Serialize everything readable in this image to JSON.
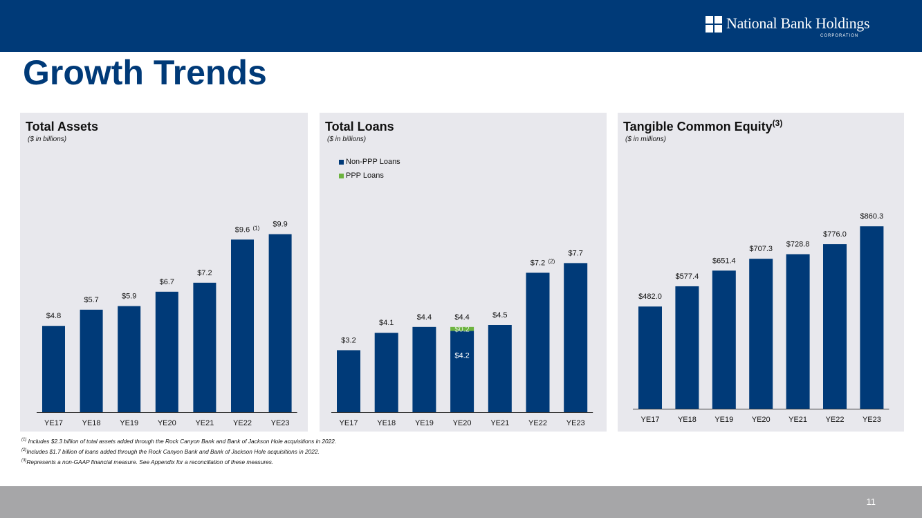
{
  "header": {
    "logo_text": "National Bank Holdings",
    "logo_subtext": "CORPORATION",
    "title": "Growth Trends"
  },
  "colors": {
    "navy": "#003a78",
    "green": "#6cb33f",
    "panel_bg": "#e8e8ed"
  },
  "chart_data": [
    {
      "type": "bar",
      "title": "Total Assets",
      "subtitle": "($ in billions)",
      "categories": [
        "YE17",
        "YE18",
        "YE19",
        "YE20",
        "YE21",
        "YE22",
        "YE23"
      ],
      "values": [
        4.8,
        5.7,
        5.9,
        6.7,
        7.2,
        9.6,
        9.9
      ],
      "labels": [
        "$4.8",
        "$5.7",
        "$5.9",
        "$6.7",
        "$7.2",
        "$9.6",
        "$9.9"
      ],
      "label_notes": [
        "",
        "",
        "",
        "",
        "",
        "(1)",
        ""
      ],
      "ylim": [
        0,
        10
      ]
    },
    {
      "type": "bar",
      "stacked": true,
      "title": "Total Loans",
      "subtitle": "($ in billions)",
      "categories": [
        "YE17",
        "YE18",
        "YE19",
        "YE20",
        "YE21",
        "YE22",
        "YE23"
      ],
      "series": [
        {
          "name": "Non-PPP Loans",
          "values": [
            3.2,
            4.1,
            4.4,
            4.2,
            4.5,
            7.2,
            7.7
          ],
          "inner_labels": [
            "",
            "",
            "",
            "$4.2",
            "",
            "",
            ""
          ]
        },
        {
          "name": "PPP Loans",
          "values": [
            0,
            0,
            0,
            0.2,
            0,
            0,
            0
          ],
          "inner_labels": [
            "",
            "",
            "",
            "$0.2",
            "",
            "",
            ""
          ]
        }
      ],
      "labels": [
        "$3.2",
        "$4.1",
        "$4.4",
        "$4.4",
        "$4.5",
        "$7.2",
        "$7.7"
      ],
      "label_notes": [
        "",
        "",
        "",
        "",
        "",
        "(2)",
        ""
      ],
      "legend": [
        "Non-PPP Loans",
        "PPP Loans"
      ],
      "ylim": [
        0,
        9.5
      ]
    },
    {
      "type": "bar",
      "title": "Tangible Common Equity",
      "title_note": "(3)",
      "subtitle": "($ in millions)",
      "categories": [
        "YE17",
        "YE18",
        "YE19",
        "YE20",
        "YE21",
        "YE22",
        "YE23"
      ],
      "values": [
        482.0,
        577.4,
        651.4,
        707.3,
        728.8,
        776.0,
        860.3
      ],
      "labels": [
        "$482.0",
        "$577.4",
        "$651.4",
        "$707.3",
        "$728.8",
        "$776.0",
        "$860.3"
      ],
      "label_notes": [
        "",
        "",
        "",
        "",
        "",
        "",
        ""
      ],
      "ylim": [
        0,
        1060
      ]
    }
  ],
  "footnotes": [
    {
      "mark": "(1)",
      "text": " Includes $2.3 billion of total assets added through the Rock Canyon Bank and Bank of Jackson Hole acquisitions in 2022."
    },
    {
      "mark": "(2)",
      "text": "Includes $1.7 billion of loans added through the Rock Canyon Bank and Bank of Jackson Hole acquisitions in 2022."
    },
    {
      "mark": "(3)",
      "text": "Represents a non-GAAP financial measure.  See Appendix for a reconciliation of these measures."
    }
  ],
  "page_number": "11"
}
